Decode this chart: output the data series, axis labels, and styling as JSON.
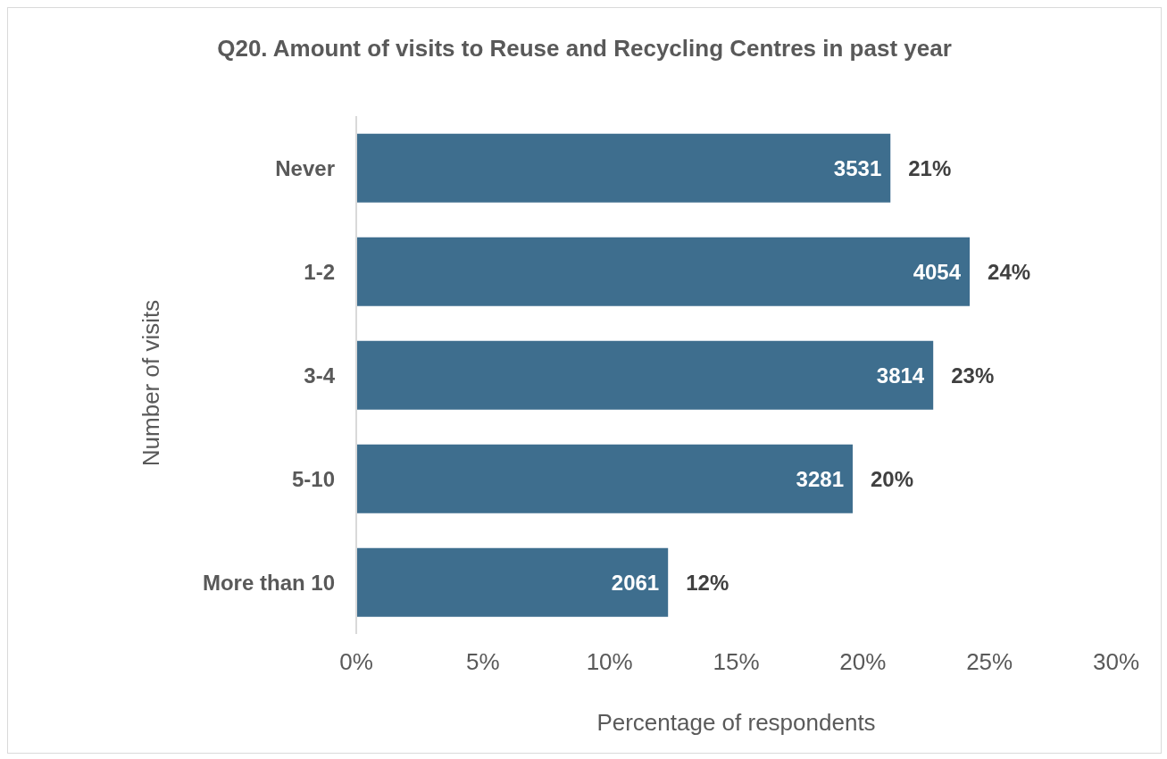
{
  "chart_data": {
    "type": "bar",
    "orientation": "horizontal",
    "title": "Q20. Amount of visits to Reuse and Recycling Centres in past year",
    "xlabel": "Percentage of respondents",
    "ylabel": "Number of visits",
    "categories": [
      "Never",
      "1-2",
      "3-4",
      "5-10",
      "More than 10"
    ],
    "values": [
      21.09,
      24.22,
      22.78,
      19.6,
      12.31
    ],
    "value_labels": [
      "21%",
      "24%",
      "23%",
      "20%",
      "12%"
    ],
    "color": "#3e6e8e",
    "xlim": [
      0,
      30
    ],
    "xticks": [
      {
        "value": 0,
        "label": "0%"
      },
      {
        "value": 5,
        "label": "5%"
      },
      {
        "value": 10,
        "label": "10%"
      },
      {
        "value": 15,
        "label": "15%"
      },
      {
        "value": 20,
        "label": "20%"
      },
      {
        "value": 25,
        "label": "25%"
      },
      {
        "value": 30,
        "label": "30%"
      }
    ],
    "annotations": [
      {
        "text": "3531",
        "x": 21.09,
        "y": "Never"
      },
      {
        "text": "4054",
        "x": 24.22,
        "y": "1-2"
      },
      {
        "text": "3814",
        "x": 22.78,
        "y": "3-4"
      },
      {
        "text": "3281",
        "x": 19.6,
        "y": "5-10"
      },
      {
        "text": "2061",
        "x": 12.31,
        "y": "More than 10"
      }
    ]
  }
}
